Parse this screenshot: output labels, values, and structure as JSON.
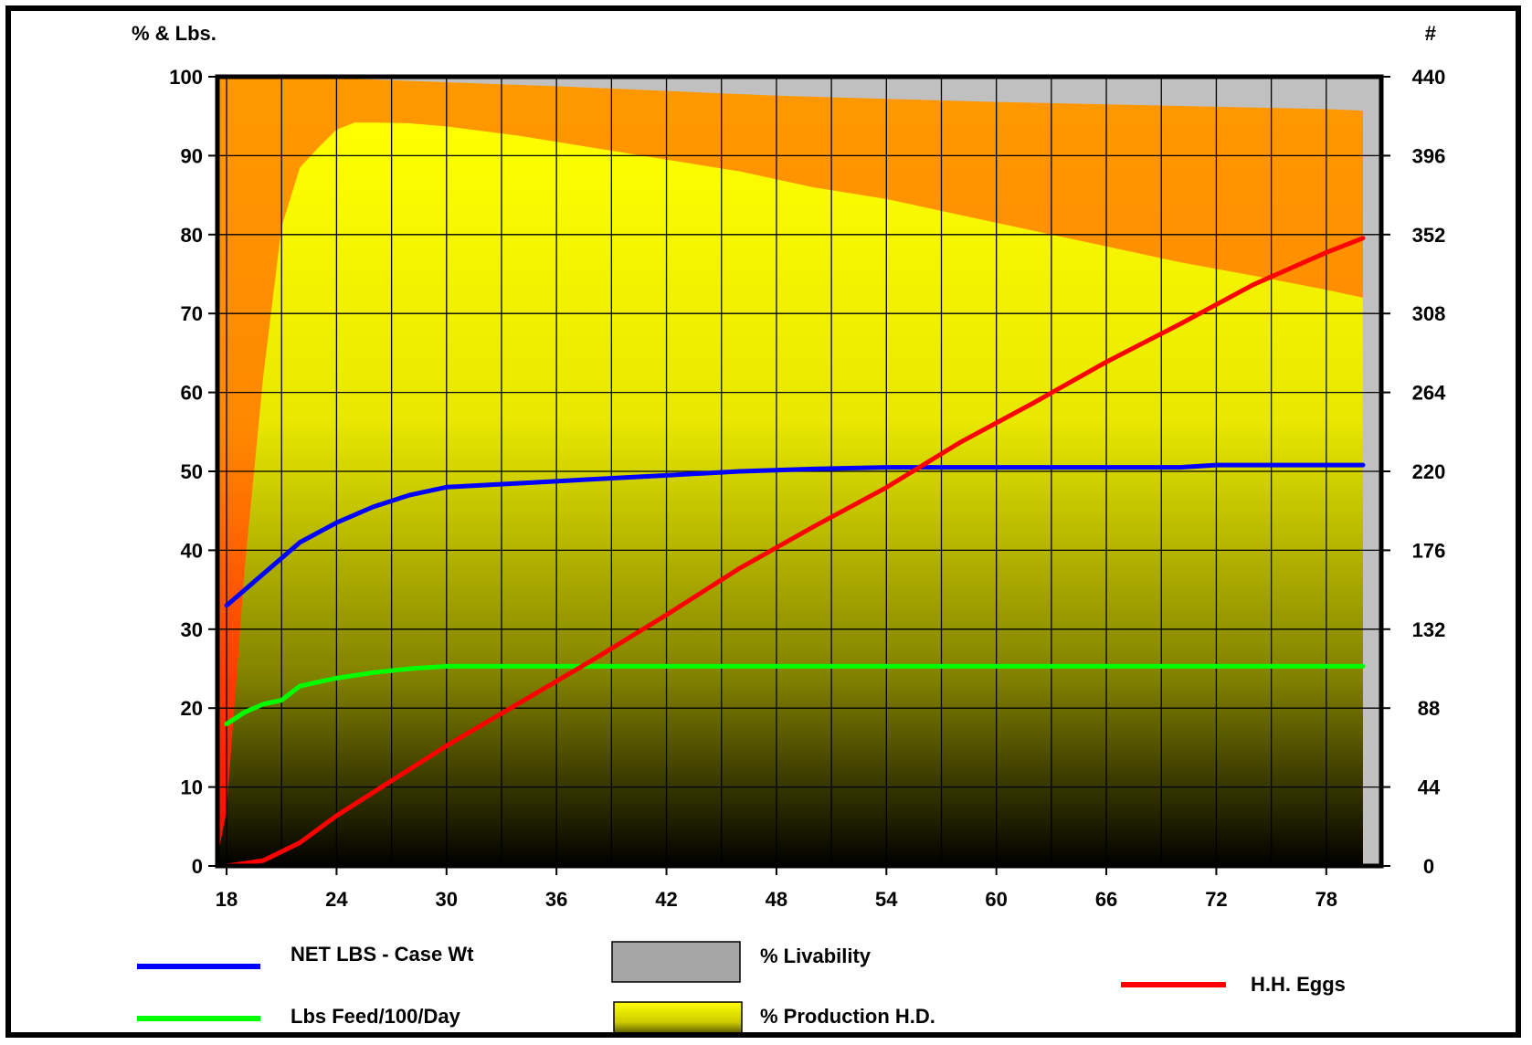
{
  "chart_data": {
    "type": "area",
    "left_axis_label": "% & Lbs.",
    "right_axis_label": "#",
    "x_ticks": [
      18,
      24,
      30,
      36,
      42,
      48,
      54,
      60,
      66,
      72,
      78
    ],
    "xlim": [
      17.5,
      81
    ],
    "ylim": [
      0,
      100
    ],
    "y_ticks": [
      0,
      10,
      20,
      30,
      40,
      50,
      60,
      70,
      80,
      90,
      100
    ],
    "y2lim": [
      0,
      440
    ],
    "y2_ticks": [
      0,
      44,
      88,
      132,
      176,
      220,
      264,
      308,
      352,
      396,
      440
    ],
    "grid": true,
    "colors": {
      "livability": "#c0c0c0",
      "orange_band": "#ff9900",
      "red": "#ff0000",
      "yellow_top": "#ffff00",
      "black": "#000000",
      "case_wt": "#0000ff",
      "feed": "#00ff00",
      "eggs": "#ff0000"
    },
    "series": [
      {
        "name": "% Livability",
        "axis": "left",
        "x": [
          18,
          24,
          30,
          36,
          42,
          48,
          54,
          60,
          66,
          72,
          78,
          80
        ],
        "values": [
          100,
          99.8,
          99.3,
          98.8,
          98.2,
          97.6,
          97.2,
          96.8,
          96.5,
          96.2,
          95.9,
          95.7
        ]
      },
      {
        "name": "% Production H.D.",
        "axis": "left",
        "x": [
          17.5,
          18,
          19,
          20,
          21,
          22,
          23,
          24,
          25,
          26,
          28,
          30,
          34,
          38,
          42,
          46,
          50,
          54,
          58,
          62,
          66,
          70,
          74,
          78,
          80
        ],
        "values": [
          1,
          7,
          38,
          62,
          81,
          88.5,
          91,
          93.3,
          94.2,
          94.2,
          94.1,
          93.7,
          92.5,
          91,
          89.5,
          88,
          86,
          84.5,
          82.5,
          80.5,
          78.5,
          76.5,
          74.8,
          73,
          72
        ]
      },
      {
        "name": "NET LBS - Case Wt",
        "axis": "left",
        "x": [
          18,
          20,
          22,
          24,
          26,
          28,
          30,
          34,
          38,
          42,
          46,
          50,
          54,
          60,
          66,
          70,
          72,
          78,
          80
        ],
        "values": [
          33,
          37,
          41,
          43.5,
          45.5,
          47,
          48,
          48.5,
          49,
          49.5,
          50,
          50.3,
          50.5,
          50.5,
          50.5,
          50.5,
          50.8,
          50.8,
          50.8
        ]
      },
      {
        "name": "Lbs Feed/100/Day",
        "axis": "left",
        "x": [
          18,
          19,
          20,
          21,
          22,
          24,
          26,
          28,
          30,
          40,
          50,
          60,
          70,
          80
        ],
        "values": [
          18,
          19.5,
          20.5,
          21,
          22.8,
          23.8,
          24.5,
          25,
          25.3,
          25.3,
          25.3,
          25.3,
          25.3,
          25.3
        ]
      },
      {
        "name": "H.H. Eggs",
        "axis": "right",
        "x": [
          18,
          20,
          22,
          24,
          26,
          28,
          30,
          34,
          38,
          42,
          46,
          50,
          54,
          58,
          62,
          66,
          70,
          74,
          78,
          80
        ],
        "values": [
          0,
          3,
          13,
          28,
          41,
          54,
          67,
          91,
          115,
          140,
          166,
          189,
          211,
          236,
          258,
          281,
          302,
          324,
          342,
          350
        ]
      }
    ],
    "legend": {
      "placement": "bottom",
      "case_wt": "NET LBS - Case Wt",
      "feed": "Lbs Feed/100/Day",
      "livability": "% Livability",
      "production": "% Production H.D.",
      "eggs": "H.H. Eggs"
    }
  }
}
